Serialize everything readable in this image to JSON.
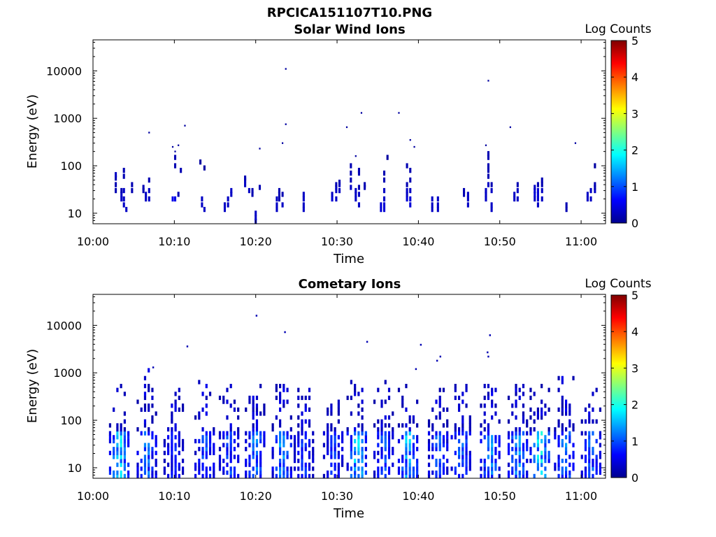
{
  "figure_title": "RPCICA151107T10.PNG",
  "colors": {
    "axis": "#000000",
    "background": "#ffffff",
    "colormap": [
      "#00008f",
      "#0000ff",
      "#0080ff",
      "#00ffff",
      "#80ff80",
      "#ffff00",
      "#ff8000",
      "#ff0000",
      "#800000"
    ]
  },
  "chart_data": [
    {
      "type": "heatmap",
      "title": "Solar Wind Ions",
      "xlabel": "Time",
      "ylabel": "Energy (eV)",
      "colorbar_label": "Log Counts",
      "x_ticks": [
        "10:00",
        "10:10",
        "10:20",
        "10:30",
        "10:40",
        "10:50",
        "11:00"
      ],
      "y_ticks": [
        "10",
        "100",
        "1000",
        "10000"
      ],
      "xlim_minutes": [
        0,
        63
      ],
      "ylim_eV": [
        6,
        45000
      ],
      "y_scale": "log",
      "clim": [
        0,
        5
      ],
      "colorbar_ticks": [
        "0",
        "1",
        "2",
        "3",
        "4",
        "5"
      ],
      "columns": [
        {
          "t": 2.8,
          "e": [
            [
              30,
              0.2
            ],
            [
              40,
              0.2
            ],
            [
              55,
              0.2
            ],
            [
              65,
              0.3
            ]
          ]
        },
        {
          "t": 3.5,
          "e": [
            [
              20,
              0.3
            ],
            [
              25,
              0.3
            ],
            [
              30,
              0.2
            ]
          ]
        },
        {
          "t": 3.8,
          "e": [
            [
              15,
              0.3
            ],
            [
              20,
              0.3
            ],
            [
              30,
              0.3
            ],
            [
              60,
              0.2
            ],
            [
              80,
              0.2
            ]
          ]
        },
        {
          "t": 4.1,
          "e": [
            [
              12,
              0.3
            ]
          ]
        },
        {
          "t": 4.8,
          "e": [
            [
              30,
              0.2
            ],
            [
              40,
              0.2
            ]
          ]
        },
        {
          "t": 6.2,
          "e": [
            [
              35,
              0.2
            ],
            [
              30,
              0.2
            ]
          ]
        },
        {
          "t": 6.5,
          "e": [
            [
              20,
              0.3
            ],
            [
              25,
              0.3
            ]
          ]
        },
        {
          "t": 6.9,
          "e": [
            [
              20,
              0.3
            ],
            [
              30,
              0.3
            ],
            [
              50,
              0.2
            ],
            [
              500,
              0.1
            ]
          ]
        },
        {
          "t": 9.8,
          "e": [
            [
              20,
              0.5
            ],
            [
              250,
              0.1
            ]
          ]
        },
        {
          "t": 10.1,
          "e": [
            [
              20,
              0.5
            ],
            [
              100,
              0.2
            ],
            [
              150,
              0.2
            ],
            [
              200,
              0.1
            ]
          ]
        },
        {
          "t": 10.5,
          "e": [
            [
              25,
              0.2
            ],
            [
              270,
              0.1
            ]
          ]
        },
        {
          "t": 10.8,
          "e": [
            [
              80,
              0.2
            ]
          ]
        },
        {
          "t": 11.3,
          "e": [
            [
              700,
              0.1
            ]
          ]
        },
        {
          "t": 13.2,
          "e": [
            [
              120,
              0.1
            ]
          ]
        },
        {
          "t": 13.4,
          "e": [
            [
              15,
              0.3
            ],
            [
              20,
              0.3
            ]
          ]
        },
        {
          "t": 13.7,
          "e": [
            [
              12,
              0.3
            ],
            [
              90,
              0.1
            ]
          ]
        },
        {
          "t": 16.2,
          "e": [
            [
              12,
              0.3
            ],
            [
              15,
              0.3
            ]
          ]
        },
        {
          "t": 16.6,
          "e": [
            [
              15,
              0.3
            ],
            [
              20,
              0.3
            ]
          ]
        },
        {
          "t": 17.0,
          "e": [
            [
              25,
              0.3
            ],
            [
              30,
              0.3
            ]
          ]
        },
        {
          "t": 18.7,
          "e": [
            [
              40,
              0.3
            ],
            [
              50,
              0.3
            ],
            [
              55,
              0.2
            ]
          ]
        },
        {
          "t": 19.2,
          "e": [
            [
              30,
              0.3
            ]
          ]
        },
        {
          "t": 19.6,
          "e": [
            [
              25,
              0.2
            ],
            [
              30,
              0.2
            ]
          ]
        },
        {
          "t": 20.0,
          "e": [
            [
              6,
              0.3
            ],
            [
              8,
              0.3
            ],
            [
              10,
              0.3
            ]
          ]
        },
        {
          "t": 20.5,
          "e": [
            [
              35,
              0.2
            ],
            [
              230,
              0.1
            ]
          ]
        },
        {
          "t": 22.6,
          "e": [
            [
              12,
              0.3
            ],
            [
              15,
              0.3
            ],
            [
              20,
              0.3
            ]
          ]
        },
        {
          "t": 22.9,
          "e": [
            [
              20,
              0.2
            ],
            [
              25,
              0.2
            ],
            [
              30,
              0.2
            ]
          ]
        },
        {
          "t": 23.3,
          "e": [
            [
              15,
              0.3
            ],
            [
              25,
              0.2
            ],
            [
              300,
              0.1
            ]
          ]
        },
        {
          "t": 23.7,
          "e": [
            [
              750,
              0.1
            ],
            [
              11000,
              0.1
            ]
          ]
        },
        {
          "t": 25.9,
          "e": [
            [
              12,
              0.3
            ],
            [
              15,
              0.3
            ],
            [
              20,
              0.3
            ],
            [
              25,
              0.3
            ]
          ]
        },
        {
          "t": 29.4,
          "e": [
            [
              20,
              0.4
            ],
            [
              25,
              0.3
            ]
          ]
        },
        {
          "t": 29.9,
          "e": [
            [
              20,
              0.3
            ],
            [
              30,
              0.3
            ],
            [
              35,
              0.3
            ],
            [
              40,
              0.2
            ]
          ]
        },
        {
          "t": 30.3,
          "e": [
            [
              30,
              0.3
            ],
            [
              40,
              0.3
            ],
            [
              45,
              0.2
            ]
          ]
        },
        {
          "t": 31.2,
          "e": [
            [
              650,
              0.1
            ]
          ]
        },
        {
          "t": 31.7,
          "e": [
            [
              35,
              0.3
            ],
            [
              50,
              0.2
            ],
            [
              70,
              0.2
            ],
            [
              100,
              0.2
            ]
          ]
        },
        {
          "t": 32.3,
          "e": [
            [
              20,
              0.3
            ],
            [
              25,
              0.3
            ],
            [
              30,
              0.3
            ],
            [
              160,
              0.1
            ]
          ]
        },
        {
          "t": 32.7,
          "e": [
            [
              15,
              0.3
            ],
            [
              25,
              0.3
            ],
            [
              35,
              0.2
            ],
            [
              70,
              0.2
            ],
            [
              80,
              0.2
            ]
          ]
        },
        {
          "t": 33.0,
          "e": [
            [
              1300,
              0.1
            ]
          ]
        },
        {
          "t": 33.4,
          "e": [
            [
              35,
              0.2
            ],
            [
              40,
              0.2
            ]
          ]
        },
        {
          "t": 35.4,
          "e": [
            [
              12,
              0.4
            ],
            [
              15,
              0.4
            ]
          ]
        },
        {
          "t": 35.8,
          "e": [
            [
              12,
              0.4
            ],
            [
              15,
              0.4
            ],
            [
              20,
              0.3
            ],
            [
              30,
              0.3
            ],
            [
              50,
              0.2
            ],
            [
              70,
              0.2
            ]
          ]
        },
        {
          "t": 36.2,
          "e": [
            [
              150,
              0.1
            ]
          ]
        },
        {
          "t": 37.6,
          "e": [
            [
              1300,
              0.1
            ]
          ]
        },
        {
          "t": 38.6,
          "e": [
            [
              20,
              0.4
            ],
            [
              25,
              0.3
            ],
            [
              30,
              0.3
            ],
            [
              40,
              0.2
            ],
            [
              100,
              0.2
            ]
          ]
        },
        {
          "t": 39.0,
          "e": [
            [
              15,
              0.4
            ],
            [
              20,
              0.4
            ],
            [
              30,
              0.3
            ],
            [
              50,
              0.2
            ],
            [
              80,
              0.2
            ],
            [
              350,
              0.1
            ]
          ]
        },
        {
          "t": 39.5,
          "e": [
            [
              250,
              0.1
            ]
          ]
        },
        {
          "t": 41.7,
          "e": [
            [
              12,
              0.3
            ],
            [
              15,
              0.3
            ],
            [
              20,
              0.3
            ]
          ]
        },
        {
          "t": 42.4,
          "e": [
            [
              12,
              0.3
            ],
            [
              15,
              0.3
            ],
            [
              20,
              0.3
            ]
          ]
        },
        {
          "t": 45.6,
          "e": [
            [
              30,
              0.2
            ],
            [
              25,
              0.2
            ]
          ]
        },
        {
          "t": 46.1,
          "e": [
            [
              15,
              0.3
            ],
            [
              20,
              0.3
            ],
            [
              25,
              0.3
            ]
          ]
        },
        {
          "t": 48.3,
          "e": [
            [
              20,
              0.3
            ],
            [
              25,
              0.3
            ],
            [
              30,
              0.3
            ],
            [
              270,
              0.1
            ]
          ]
        },
        {
          "t": 48.6,
          "e": [
            [
              40,
              0.3
            ],
            [
              60,
              0.2
            ],
            [
              80,
              0.2
            ],
            [
              100,
              0.2
            ],
            [
              150,
              0.2
            ],
            [
              180,
              0.2
            ],
            [
              6200,
              0.1
            ]
          ]
        },
        {
          "t": 49.0,
          "e": [
            [
              12,
              0.3
            ],
            [
              15,
              0.3
            ],
            [
              30,
              0.3
            ],
            [
              40,
              0.2
            ]
          ]
        },
        {
          "t": 51.3,
          "e": [
            [
              650,
              0.1
            ]
          ]
        },
        {
          "t": 51.8,
          "e": [
            [
              20,
              0.3
            ],
            [
              25,
              0.3
            ]
          ]
        },
        {
          "t": 52.2,
          "e": [
            [
              20,
              0.3
            ],
            [
              30,
              0.3
            ],
            [
              40,
              0.2
            ]
          ]
        },
        {
          "t": 54.3,
          "e": [
            [
              20,
              0.3
            ],
            [
              25,
              0.4
            ],
            [
              30,
              0.4
            ],
            [
              35,
              0.3
            ]
          ]
        },
        {
          "t": 54.7,
          "e": [
            [
              15,
              0.3
            ],
            [
              20,
              0.4
            ],
            [
              25,
              0.4
            ],
            [
              30,
              0.4
            ],
            [
              40,
              0.2
            ]
          ]
        },
        {
          "t": 55.2,
          "e": [
            [
              20,
              0.3
            ],
            [
              30,
              0.3
            ],
            [
              40,
              0.2
            ],
            [
              50,
              0.2
            ]
          ]
        },
        {
          "t": 58.2,
          "e": [
            [
              12,
              0.2
            ],
            [
              15,
              0.2
            ]
          ]
        },
        {
          "t": 59.3,
          "e": [
            [
              300,
              0.1
            ]
          ]
        },
        {
          "t": 60.8,
          "e": [
            [
              20,
              0.3
            ],
            [
              25,
              0.3
            ]
          ]
        },
        {
          "t": 61.2,
          "e": [
            [
              20,
              0.3
            ],
            [
              30,
              0.3
            ]
          ]
        },
        {
          "t": 61.7,
          "e": [
            [
              30,
              0.3
            ],
            [
              35,
              0.2
            ],
            [
              40,
              0.2
            ],
            [
              100,
              0.1
            ]
          ]
        }
      ]
    },
    {
      "type": "heatmap",
      "title": "Cometary Ions",
      "xlabel": "Time",
      "ylabel": "Energy (eV)",
      "colorbar_label": "Log Counts",
      "x_ticks": [
        "10:00",
        "10:10",
        "10:20",
        "10:30",
        "10:40",
        "10:50",
        "11:00"
      ],
      "y_ticks": [
        "10",
        "100",
        "1000",
        "10000"
      ],
      "xlim_minutes": [
        0,
        63
      ],
      "ylim_eV": [
        6,
        45000
      ],
      "y_scale": "log",
      "clim": [
        0,
        5
      ],
      "colorbar_ticks": [
        "0",
        "1",
        "2",
        "3",
        "4",
        "5"
      ],
      "bursts": [
        {
          "t": 3.3,
          "peak": 1.8,
          "top": 600
        },
        {
          "t": 6.7,
          "peak": 1.2,
          "top": 1200
        },
        {
          "t": 10.0,
          "peak": 0.8,
          "top": 500
        },
        {
          "t": 13.8,
          "peak": 1.1,
          "top": 650
        },
        {
          "t": 16.8,
          "peak": 1.0,
          "top": 650
        },
        {
          "t": 20.0,
          "peak": 1.3,
          "top": 600
        },
        {
          "t": 23.3,
          "peak": 1.4,
          "top": 550
        },
        {
          "t": 26.0,
          "peak": 0.9,
          "top": 500
        },
        {
          "t": 29.6,
          "peak": 0.9,
          "top": 300
        },
        {
          "t": 32.5,
          "peak": 1.8,
          "top": 900
        },
        {
          "t": 35.8,
          "peak": 1.1,
          "top": 700
        },
        {
          "t": 38.8,
          "peak": 1.6,
          "top": 600
        },
        {
          "t": 42.5,
          "peak": 1.1,
          "top": 500
        },
        {
          "t": 45.3,
          "peak": 1.2,
          "top": 600
        },
        {
          "t": 48.9,
          "peak": 1.4,
          "top": 550
        },
        {
          "t": 52.3,
          "peak": 1.4,
          "top": 600
        },
        {
          "t": 55.0,
          "peak": 1.9,
          "top": 600
        },
        {
          "t": 58.0,
          "peak": 1.3,
          "top": 1100
        },
        {
          "t": 61.3,
          "peak": 1.1,
          "top": 500
        }
      ],
      "scattered_points": [
        {
          "t": 11.6,
          "e": 3600
        },
        {
          "t": 20.1,
          "e": 16000
        },
        {
          "t": 23.6,
          "e": 7200
        },
        {
          "t": 33.7,
          "e": 4500
        },
        {
          "t": 40.3,
          "e": 3900
        },
        {
          "t": 42.7,
          "e": 2200
        },
        {
          "t": 42.3,
          "e": 1800
        },
        {
          "t": 48.5,
          "e": 2700
        },
        {
          "t": 48.6,
          "e": 2200
        },
        {
          "t": 48.8,
          "e": 6200
        },
        {
          "t": 39.7,
          "e": 1200
        },
        {
          "t": 7.4,
          "e": 1300
        }
      ]
    }
  ]
}
